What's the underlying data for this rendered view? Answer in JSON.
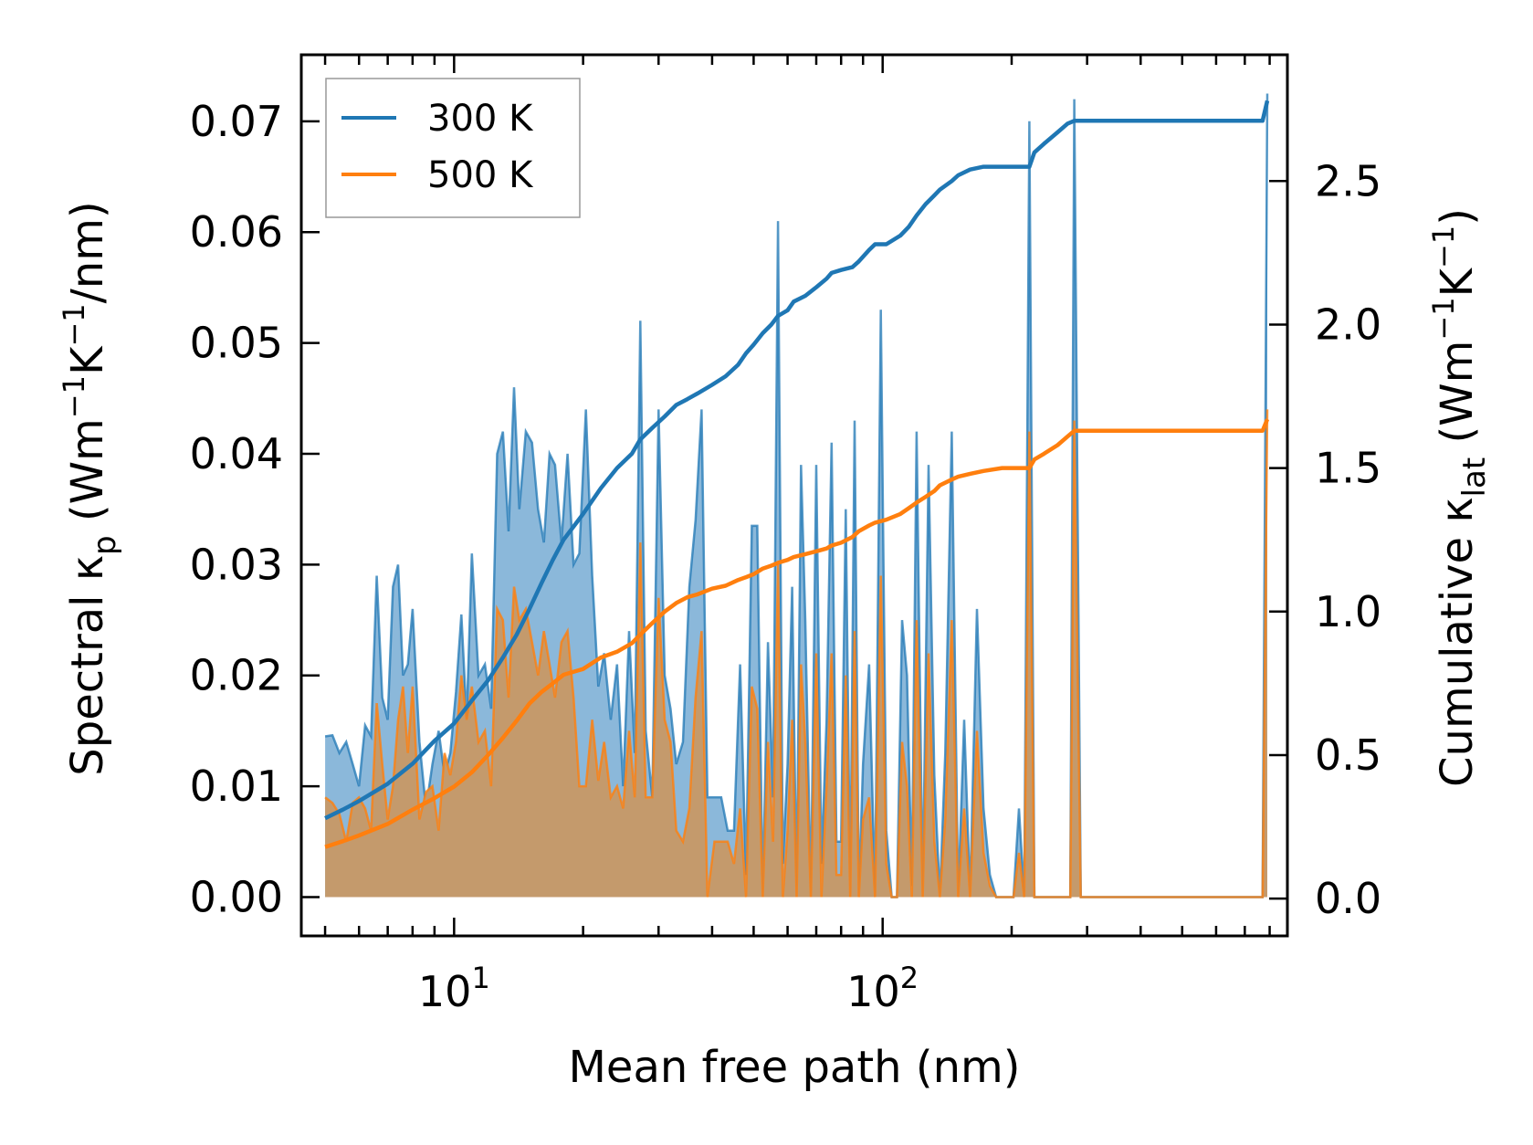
{
  "chart_data": {
    "type": "line",
    "xscale": "log",
    "xlabel": "Mean free path (nm)",
    "ylabel_left": {
      "main": "Spectral κ",
      "sub": "p",
      "unit_pre": " (Wm",
      "sup1": "−1",
      "mid": "K",
      "sup2": "−1",
      "unit_post": "/nm)"
    },
    "ylabel_right": {
      "main": "Cumulative κ",
      "sub": "lat",
      "unit_pre": " (Wm",
      "sup1": "−1",
      "mid": "K",
      "sup2": "−1",
      "unit_post": ")"
    },
    "xlim": [
      4.4,
      880
    ],
    "ylim_left": [
      -0.0035,
      0.076
    ],
    "ylim_right": [
      -0.13,
      2.94
    ],
    "xticks": [
      {
        "value": 10,
        "base": "10",
        "exp": "1"
      },
      {
        "value": 100,
        "base": "10",
        "exp": "2"
      }
    ],
    "yticks_left": [
      "0.00",
      "0.01",
      "0.02",
      "0.03",
      "0.04",
      "0.05",
      "0.06",
      "0.07"
    ],
    "yticks_right": [
      "0.0",
      "0.5",
      "1.0",
      "1.5",
      "2.0",
      "2.5"
    ],
    "legend": {
      "position": "top-left",
      "entries": [
        "300 K",
        "500 K"
      ]
    },
    "colors": {
      "s300": "#1f77b4",
      "s500": "#ff7f0e",
      "fill300": "#8bb8da",
      "fill500": "#c49a6c"
    },
    "spectral": {
      "x": [
        5.0,
        5.2,
        5.4,
        5.6,
        5.8,
        6.0,
        6.2,
        6.4,
        6.6,
        6.8,
        7.0,
        7.2,
        7.4,
        7.6,
        7.8,
        8.0,
        8.3,
        8.6,
        8.9,
        9.2,
        9.5,
        9.8,
        10.1,
        10.4,
        10.7,
        11.0,
        11.4,
        11.8,
        12.2,
        12.6,
        13.0,
        13.4,
        13.8,
        14.2,
        14.7,
        15.2,
        15.7,
        16.2,
        16.7,
        17.2,
        17.8,
        18.4,
        19.0,
        19.6,
        20.3,
        21.0,
        21.7,
        22.4,
        23.2,
        24.0,
        24.8,
        25.6,
        26.4,
        27.2,
        28.0,
        29.0,
        30.0,
        31.0,
        32.0,
        33.0,
        34.2,
        35.4,
        36.6,
        37.8,
        39.0,
        40.5,
        42.0,
        43.5,
        45.0,
        46.5,
        48.0,
        49.5,
        51.0,
        52.5,
        54.0,
        55.5,
        57.0,
        58.5,
        60.0,
        61.5,
        63.0,
        64.5,
        66.0,
        68.0,
        70.0,
        72.0,
        74.0,
        76.0,
        78.0,
        80.0,
        82.0,
        84.0,
        86.0,
        88.0,
        90.0,
        93.0,
        96.0,
        99.0,
        102.0,
        105.0,
        108.0,
        111.0,
        114.0,
        117.0,
        120.0,
        124.0,
        128.0,
        132.0,
        136.0,
        140.0,
        145.0,
        150.0,
        155.0,
        160.0,
        166.0,
        172.0,
        178.0,
        184.0,
        190.0,
        196.0,
        202.0,
        208.0,
        214.0,
        220.0,
        226.0,
        232.0,
        238.0,
        244.0,
        250.0,
        256.0,
        262.0,
        268.0,
        274.0,
        280.0,
        290.0,
        400.0,
        600.0,
        770.0,
        790.0
      ],
      "s300": [
        0.0145,
        0.0146,
        0.013,
        0.014,
        0.012,
        0.01,
        0.0155,
        0.0145,
        0.029,
        0.018,
        0.016,
        0.028,
        0.03,
        0.02,
        0.021,
        0.026,
        0.014,
        0.008,
        0.012,
        0.015,
        0.011,
        0.013,
        0.0185,
        0.0255,
        0.016,
        0.031,
        0.02,
        0.021,
        0.017,
        0.04,
        0.042,
        0.033,
        0.046,
        0.035,
        0.042,
        0.041,
        0.035,
        0.032,
        0.04,
        0.039,
        0.032,
        0.04,
        0.03,
        0.031,
        0.044,
        0.029,
        0.019,
        0.022,
        0.016,
        0.021,
        0.01,
        0.024,
        0.013,
        0.052,
        0.015,
        0.009,
        0.044,
        0.02,
        0.017,
        0.012,
        0.014,
        0.028,
        0.034,
        0.044,
        0.009,
        0.009,
        0.009,
        0.006,
        0.006,
        0.021,
        0.002,
        0.0335,
        0.0335,
        0.0,
        0.023,
        0.009,
        0.061,
        0.003,
        0.012,
        0.028,
        0.0,
        0.039,
        0.025,
        0.0,
        0.039,
        0.003,
        0.016,
        0.041,
        0.005,
        0.005,
        0.035,
        0.0,
        0.043,
        0.0,
        0.012,
        0.021,
        0.0,
        0.053,
        0.006,
        0.0,
        0.0,
        0.025,
        0.02,
        0.001,
        0.042,
        0.0,
        0.039,
        0.011,
        0.0,
        0.013,
        0.042,
        0.0,
        0.016,
        0.0,
        0.026,
        0.008,
        0.002,
        0.0,
        0.0,
        0.0,
        0.0,
        0.008,
        0.0,
        0.07,
        0.0,
        0.0,
        0.0,
        0.0,
        0.0,
        0.0,
        0.0,
        0.0,
        0.0,
        0.072,
        0.0,
        0.0,
        0.0,
        0.0,
        0.0725
      ],
      "s500": [
        0.009,
        0.0085,
        0.0075,
        0.005,
        0.0085,
        0.009,
        0.008,
        0.006,
        0.0175,
        0.012,
        0.007,
        0.01,
        0.016,
        0.019,
        0.013,
        0.019,
        0.007,
        0.0095,
        0.01,
        0.006,
        0.013,
        0.011,
        0.014,
        0.02,
        0.016,
        0.019,
        0.014,
        0.015,
        0.01,
        0.026,
        0.025,
        0.018,
        0.028,
        0.025,
        0.026,
        0.023,
        0.02,
        0.024,
        0.021,
        0.018,
        0.023,
        0.024,
        0.018,
        0.01,
        0.01,
        0.016,
        0.0105,
        0.014,
        0.009,
        0.01,
        0.008,
        0.015,
        0.009,
        0.032,
        0.009,
        0.009,
        0.027,
        0.016,
        0.014,
        0.006,
        0.005,
        0.008,
        0.018,
        0.024,
        0.0,
        0.005,
        0.005,
        0.005,
        0.003,
        0.008,
        0.0,
        0.019,
        0.017,
        0.0,
        0.014,
        0.005,
        0.03,
        0.0,
        0.006,
        0.016,
        0.0,
        0.021,
        0.014,
        0.0,
        0.022,
        0.0,
        0.01,
        0.022,
        0.002,
        0.002,
        0.02,
        0.0,
        0.024,
        0.0,
        0.007,
        0.009,
        0.0,
        0.029,
        0.003,
        0.0,
        0.0,
        0.014,
        0.01,
        0.0,
        0.025,
        0.0,
        0.022,
        0.005,
        0.0,
        0.007,
        0.025,
        0.0,
        0.008,
        0.0,
        0.015,
        0.004,
        0.001,
        0.0,
        0.0,
        0.0,
        0.0,
        0.004,
        0.0,
        0.042,
        0.0,
        0.0,
        0.0,
        0.0,
        0.0,
        0.0,
        0.0,
        0.0,
        0.0,
        0.043,
        0.0,
        0.0,
        0.0,
        0.0,
        0.044
      ]
    },
    "cumulative": {
      "x": [
        5.0,
        5.5,
        6.0,
        7.0,
        8.0,
        9.0,
        10.0,
        11.0,
        12.0,
        13.0,
        14.0,
        15.0,
        16.0,
        17.0,
        18.0,
        20.0,
        22.0,
        24.0,
        26.0,
        27.2,
        29.0,
        31.0,
        33.0,
        35.0,
        37.0,
        40.0,
        43.0,
        46.0,
        48.0,
        50.0,
        52.5,
        55.0,
        57.0,
        60.0,
        62.0,
        66.0,
        70.0,
        74.0,
        76.0,
        80.0,
        85.0,
        88.0,
        93.0,
        96.0,
        102.0,
        110.0,
        115.0,
        120.0,
        126.0,
        132.0,
        136.0,
        145.0,
        150.0,
        160.0,
        172.0,
        190.0,
        220.0,
        226.0,
        238.0,
        256.0,
        270.0,
        280.0,
        400.0,
        600.0,
        770.0,
        790.0
      ],
      "c300": [
        0.28,
        0.31,
        0.34,
        0.4,
        0.47,
        0.55,
        0.61,
        0.69,
        0.76,
        0.84,
        0.92,
        1.01,
        1.1,
        1.18,
        1.25,
        1.34,
        1.43,
        1.5,
        1.55,
        1.6,
        1.64,
        1.68,
        1.72,
        1.74,
        1.76,
        1.79,
        1.82,
        1.86,
        1.9,
        1.93,
        1.97,
        2.0,
        2.03,
        2.05,
        2.08,
        2.1,
        2.13,
        2.16,
        2.18,
        2.19,
        2.2,
        2.22,
        2.26,
        2.28,
        2.28,
        2.31,
        2.34,
        2.38,
        2.42,
        2.45,
        2.47,
        2.5,
        2.52,
        2.54,
        2.55,
        2.55,
        2.55,
        2.6,
        2.63,
        2.67,
        2.7,
        2.71,
        2.71,
        2.71,
        2.71,
        2.78
      ],
      "c500": [
        0.18,
        0.2,
        0.22,
        0.26,
        0.31,
        0.35,
        0.39,
        0.44,
        0.5,
        0.56,
        0.62,
        0.68,
        0.72,
        0.75,
        0.78,
        0.8,
        0.84,
        0.86,
        0.89,
        0.92,
        0.96,
        1.0,
        1.03,
        1.05,
        1.06,
        1.08,
        1.09,
        1.11,
        1.12,
        1.13,
        1.15,
        1.16,
        1.17,
        1.18,
        1.19,
        1.2,
        1.21,
        1.22,
        1.23,
        1.24,
        1.26,
        1.28,
        1.3,
        1.31,
        1.32,
        1.34,
        1.36,
        1.38,
        1.4,
        1.42,
        1.44,
        1.46,
        1.47,
        1.48,
        1.49,
        1.5,
        1.5,
        1.53,
        1.55,
        1.58,
        1.61,
        1.63,
        1.63,
        1.63,
        1.63,
        1.67
      ]
    }
  }
}
